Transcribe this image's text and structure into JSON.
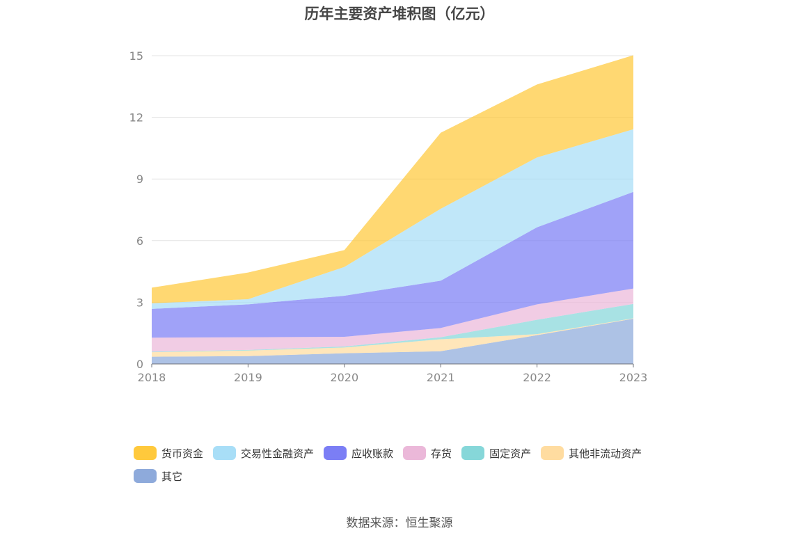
{
  "chart_data": {
    "type": "area",
    "stacked": true,
    "title": "历年主要资产堆积图（亿元）",
    "x": [
      "2018",
      "2019",
      "2020",
      "2021",
      "2022",
      "2023"
    ],
    "ylim": [
      0,
      15
    ],
    "yticks": [
      0,
      3,
      6,
      9,
      12,
      15
    ],
    "grid": true,
    "legend_position": "bottom",
    "series": [
      {
        "name": "其它",
        "color": "#8eaadb",
        "values": [
          0.35,
          0.38,
          0.52,
          0.62,
          1.4,
          2.2
        ]
      },
      {
        "name": "其他非流动资产",
        "color": "#ffdca0",
        "values": [
          0.22,
          0.27,
          0.28,
          0.58,
          0.05,
          0.02
        ]
      },
      {
        "name": "固定资产",
        "color": "#86d7d9",
        "values": [
          0.03,
          0.03,
          0.05,
          0.1,
          0.7,
          0.7
        ]
      },
      {
        "name": "存货",
        "color": "#ebb8d9",
        "values": [
          0.68,
          0.62,
          0.47,
          0.45,
          0.75,
          0.75
        ]
      },
      {
        "name": "应收账款",
        "color": "#7b7ef5",
        "values": [
          1.4,
          1.6,
          2.0,
          2.3,
          3.75,
          4.7
        ]
      },
      {
        "name": "交易性金融资产",
        "color": "#a8def7",
        "values": [
          0.27,
          0.25,
          1.4,
          3.5,
          3.4,
          3.05
        ]
      },
      {
        "name": "货币资金",
        "color": "#ffc93c",
        "values": [
          0.76,
          1.3,
          0.82,
          3.7,
          3.55,
          3.6
        ]
      }
    ],
    "legend_order": [
      "货币资金",
      "交易性金融资产",
      "应收账款",
      "存货",
      "固定资产",
      "其他非流动资产",
      "其它"
    ]
  },
  "source_text": "数据来源：恒生聚源"
}
